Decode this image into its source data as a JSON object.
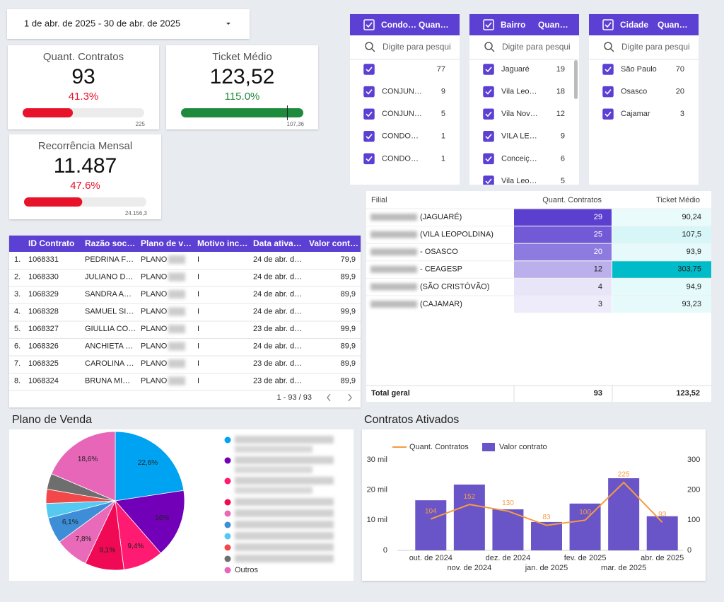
{
  "date_filter": "1 de abr. de 2025 - 30 de abr. de 2025",
  "scorecards": [
    {
      "title": "Quant. Contratos",
      "value": "93",
      "delta": {
        "value": 41.3,
        "label": "41.3%"
      },
      "target": "225",
      "color": "#e8132b"
    },
    {
      "title": "Ticket Médio",
      "value": "123,52",
      "delta": {
        "value": 115.0,
        "label": "115.0%"
      },
      "target": "107,36",
      "color": "#1e8a3c"
    },
    {
      "title": "Recorrência Mensal",
      "value": "11.487",
      "delta": {
        "value": 47.6,
        "label": "47.6%"
      },
      "target": "24.156,3",
      "color": "#e8132b"
    }
  ],
  "filters": [
    {
      "columns": [
        "Condo…",
        "Quan…"
      ],
      "search": "Digite para pesqui",
      "items": [
        {
          "label": null,
          "count": 77
        },
        {
          "label": "CONJUN…",
          "count": 9
        },
        {
          "label": "CONJUN…",
          "count": 5
        },
        {
          "label": "CONDO…",
          "count": 1
        },
        {
          "label": "CONDO…",
          "count": 1
        }
      ]
    },
    {
      "columns": [
        "Bairro",
        "Quan…"
      ],
      "search": "Digite para pesqui",
      "items": [
        {
          "label": "Jaguaré",
          "count": 19
        },
        {
          "label": "Vila Leo…",
          "count": 18
        },
        {
          "label": "Vila Nov…",
          "count": 12
        },
        {
          "label": "VILA LE…",
          "count": 9
        },
        {
          "label": "Conceiç…",
          "count": 6
        },
        {
          "label": "Vila Leo…",
          "count": 5
        }
      ]
    },
    {
      "columns": [
        "Cidade",
        "Quan…"
      ],
      "search": "Digite para pesqui",
      "items": [
        {
          "label": "São Paulo",
          "count": 70
        },
        {
          "label": "Osasco",
          "count": 20
        },
        {
          "label": "Cajamar",
          "count": 3
        }
      ]
    }
  ],
  "filial_table": {
    "columns": [
      "Filial",
      "Quant. Contratos",
      "Ticket Médio"
    ],
    "rows": [
      {
        "filial": "(JAGUARÉ)",
        "count": 29,
        "ticket": {
          "value": 90.24,
          "label": "90,24"
        }
      },
      {
        "filial": "(VILA LEOPOLDINA)",
        "count": 25,
        "ticket": {
          "value": 107.5,
          "label": "107,5"
        }
      },
      {
        "filial": "- OSASCO",
        "count": 20,
        "ticket": {
          "value": 93.9,
          "label": "93,9"
        }
      },
      {
        "filial": "- CEAGESP",
        "count": 12,
        "ticket": {
          "value": 303.75,
          "label": "303,75"
        }
      },
      {
        "filial": "(SÃO CRISTÓVÃO)",
        "count": 4,
        "ticket": {
          "value": 94.9,
          "label": "94,9"
        }
      },
      {
        "filial": "(CAJAMAR)",
        "count": 3,
        "ticket": {
          "value": 93.23,
          "label": "93,23"
        }
      }
    ],
    "total": {
      "label": "Total geral",
      "count": 93,
      "ticket": "123,52"
    }
  },
  "contracts_table": {
    "columns": [
      "ID Contrato",
      "Razão soc…",
      "Plano de v…",
      "Motivo inc…",
      "Data ativa…",
      "Valor cont…"
    ],
    "rows": [
      [
        "1.",
        "1068331",
        "PEDRINA F…",
        "PLANO",
        "I",
        "24 de abr. d…",
        "79,9"
      ],
      [
        "2.",
        "1068330",
        "JULIANO D…",
        "PLANO",
        "I",
        "24 de abr. d…",
        "89,9"
      ],
      [
        "3.",
        "1068329",
        "SANDRA A…",
        "PLANO",
        "I",
        "24 de abr. d…",
        "89,9"
      ],
      [
        "4.",
        "1068328",
        "SAMUEL SI…",
        "PLANO",
        "I",
        "24 de abr. d…",
        "99,9"
      ],
      [
        "5.",
        "1068327",
        "GIULLIA CO…",
        "PLANO",
        "I",
        "23 de abr. d…",
        "99,9"
      ],
      [
        "6.",
        "1068326",
        "ANCHIETA …",
        "PLANO",
        "I",
        "24 de abr. d…",
        "89,9"
      ],
      [
        "7.",
        "1068325",
        "CAROLINA …",
        "PLANO",
        "I",
        "23 de abr. d…",
        "89,9"
      ],
      [
        "8.",
        "1068324",
        "BRUNA MI…",
        "PLANO",
        "I",
        "23 de abr. d…",
        "89,9"
      ]
    ],
    "pagination": "1 - 93 / 93"
  },
  "chart_data": [
    {
      "type": "pie",
      "title": "Plano de Venda",
      "categories": [
        null,
        null,
        null,
        null,
        null,
        null,
        null,
        null,
        null,
        "Outros"
      ],
      "values": [
        22.6,
        16,
        9.4,
        9.1,
        7.8,
        6.1,
        3.4,
        3.3,
        3.7,
        18.6
      ],
      "value_labels": [
        "22,6%",
        "16%",
        "9,4%",
        "9,1%",
        "7,8%",
        "6,1%",
        null,
        null,
        null,
        "18,6%"
      ],
      "colors": [
        "#00a2f2",
        "#7100b8",
        "#ff1a72",
        "#f00a55",
        "#e86ab8",
        "#3d8ed6",
        "#55c9f0",
        "#f2484a",
        "#6e6e6e",
        "#e766b8"
      ]
    },
    {
      "type": "combo",
      "title": "Contratos Ativados",
      "categories": [
        "out. de 2024",
        "nov. de 2024",
        "dez. de 2024",
        "jan. de 2025",
        "fev. de 2025",
        "mar. de 2025",
        "abr. de 2025"
      ],
      "series": [
        {
          "name": "Quant. Contratos",
          "type": "line",
          "axis": "y2",
          "color": "#f59c42",
          "values": [
            104,
            152,
            130,
            83,
            100,
            225,
            93
          ]
        },
        {
          "name": "Valor contrato",
          "type": "bar",
          "color": "#6a55c8",
          "values": [
            16600,
            21800,
            13600,
            9400,
            15500,
            23900,
            11300
          ]
        }
      ],
      "ylim": [
        0,
        30000
      ],
      "yticks": [
        0,
        {
          "value": 10000,
          "label": "10 mil"
        },
        {
          "value": 20000,
          "label": "20 mil"
        },
        {
          "value": 30000,
          "label": "30 mil"
        }
      ],
      "y2lim": [
        0,
        300
      ],
      "y2ticks": [
        0,
        100,
        200,
        300
      ]
    }
  ]
}
